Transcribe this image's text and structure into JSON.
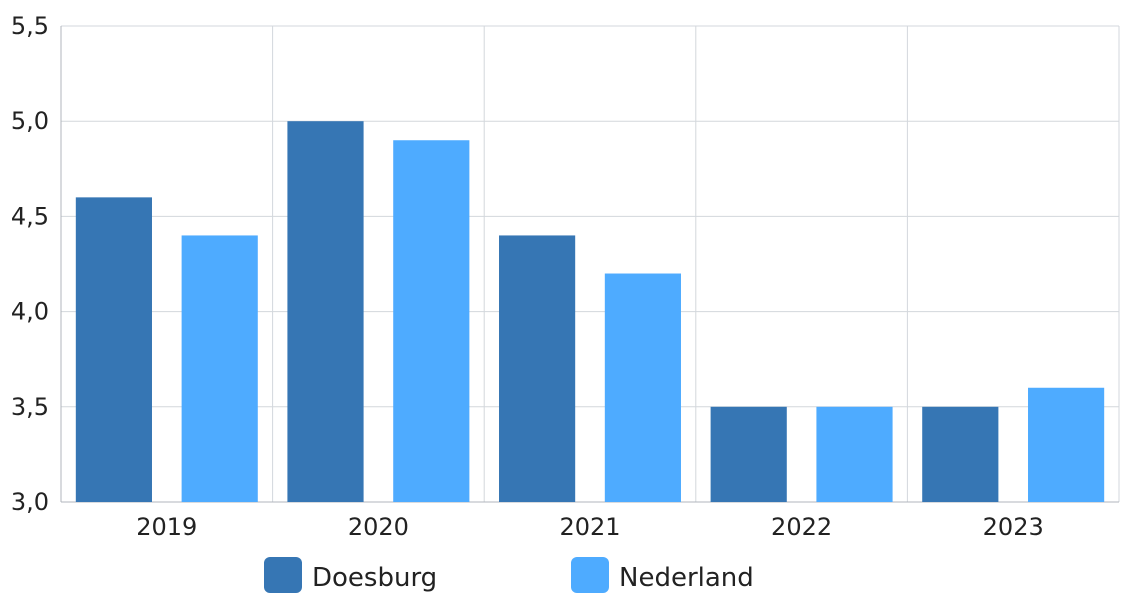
{
  "chart_data": {
    "type": "bar",
    "categories": [
      "2019",
      "2020",
      "2021",
      "2022",
      "2023"
    ],
    "series": [
      {
        "name": "Doesburg",
        "values": [
          4.6,
          5.0,
          4.4,
          3.5,
          3.5
        ],
        "color": "#3676b4"
      },
      {
        "name": "Nederland",
        "values": [
          4.4,
          4.9,
          4.2,
          3.5,
          3.6
        ],
        "color": "#4eabff"
      }
    ],
    "ylim": [
      3.0,
      5.5
    ],
    "yticks": [
      "3,0",
      "3,5",
      "4,0",
      "4,5",
      "5,0",
      "5,5"
    ],
    "grid": true,
    "legend_position": "bottom",
    "title": "",
    "xlabel": "",
    "ylabel": ""
  }
}
